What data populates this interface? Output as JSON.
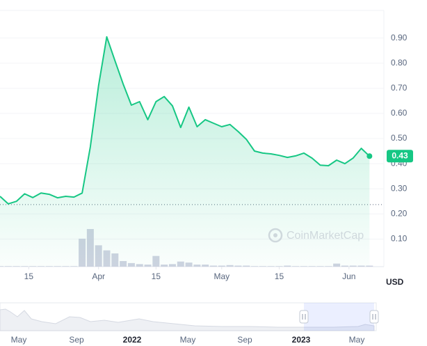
{
  "chart_data": {
    "type": "line",
    "x": [
      8,
      10,
      12,
      14,
      16,
      18,
      20,
      22,
      24,
      26,
      28,
      30,
      32,
      34,
      36,
      38,
      40,
      42,
      44,
      46,
      48,
      50,
      52,
      54,
      56,
      58,
      60,
      62,
      64,
      66,
      68,
      70,
      72,
      74,
      76,
      78,
      80,
      82,
      84,
      86,
      88,
      90,
      92,
      94,
      96,
      98
    ],
    "values": [
      0.27,
      0.24,
      0.25,
      0.28,
      0.265,
      0.283,
      0.278,
      0.264,
      0.27,
      0.267,
      0.283,
      0.467,
      0.71,
      0.905,
      0.81,
      0.717,
      0.633,
      0.647,
      0.575,
      0.647,
      0.667,
      0.63,
      0.544,
      0.625,
      0.547,
      0.575,
      0.561,
      0.547,
      0.556,
      0.528,
      0.497,
      0.45,
      0.442,
      0.439,
      0.433,
      0.425,
      0.431,
      0.442,
      0.422,
      0.394,
      0.392,
      0.414,
      0.4,
      0.422,
      0.461,
      0.43
    ],
    "color": "#16c784",
    "volume": [
      1,
      1,
      1,
      1,
      1,
      1,
      1,
      1,
      1,
      1,
      55,
      74,
      42,
      32,
      26,
      11,
      7,
      5,
      4,
      21,
      4,
      5,
      10,
      8,
      4,
      4,
      2,
      2,
      3,
      2,
      2,
      1,
      1,
      1,
      1,
      2,
      1,
      1,
      1,
      1,
      1,
      6,
      2,
      2,
      2,
      2
    ],
    "volume_color": "#c3c8d9",
    "y2lim": [
      0,
      100
    ],
    "xlim": [
      8,
      101.5
    ],
    "xticks": [
      {
        "value": 15,
        "label": "15"
      },
      {
        "value": 32,
        "label": "Apr"
      },
      {
        "value": 46,
        "label": "15"
      },
      {
        "value": 62,
        "label": "May"
      },
      {
        "value": 76,
        "label": "15"
      },
      {
        "value": 93,
        "label": "Jun"
      }
    ],
    "ylim": [
      -0.01,
      1.01
    ],
    "yticks": [
      {
        "value": 0.1,
        "label": "0.10"
      },
      {
        "value": 0.2,
        "label": "0.20"
      },
      {
        "value": 0.3,
        "label": "0.30"
      },
      {
        "value": 0.4,
        "label": "0.40"
      },
      {
        "value": 0.5,
        "label": "0.50"
      },
      {
        "value": 0.6,
        "label": "0.60"
      },
      {
        "value": 0.7,
        "label": "0.70"
      },
      {
        "value": 0.8,
        "label": "0.80"
      },
      {
        "value": 0.9,
        "label": "0.90"
      }
    ],
    "grid": true,
    "reference_line": 0.237,
    "unit": "USD",
    "watermark": "CoinMarketCap"
  },
  "navigator": {
    "labels": [
      "May",
      "Sep",
      "2022",
      "May",
      "Sep",
      "2023",
      "May"
    ]
  }
}
